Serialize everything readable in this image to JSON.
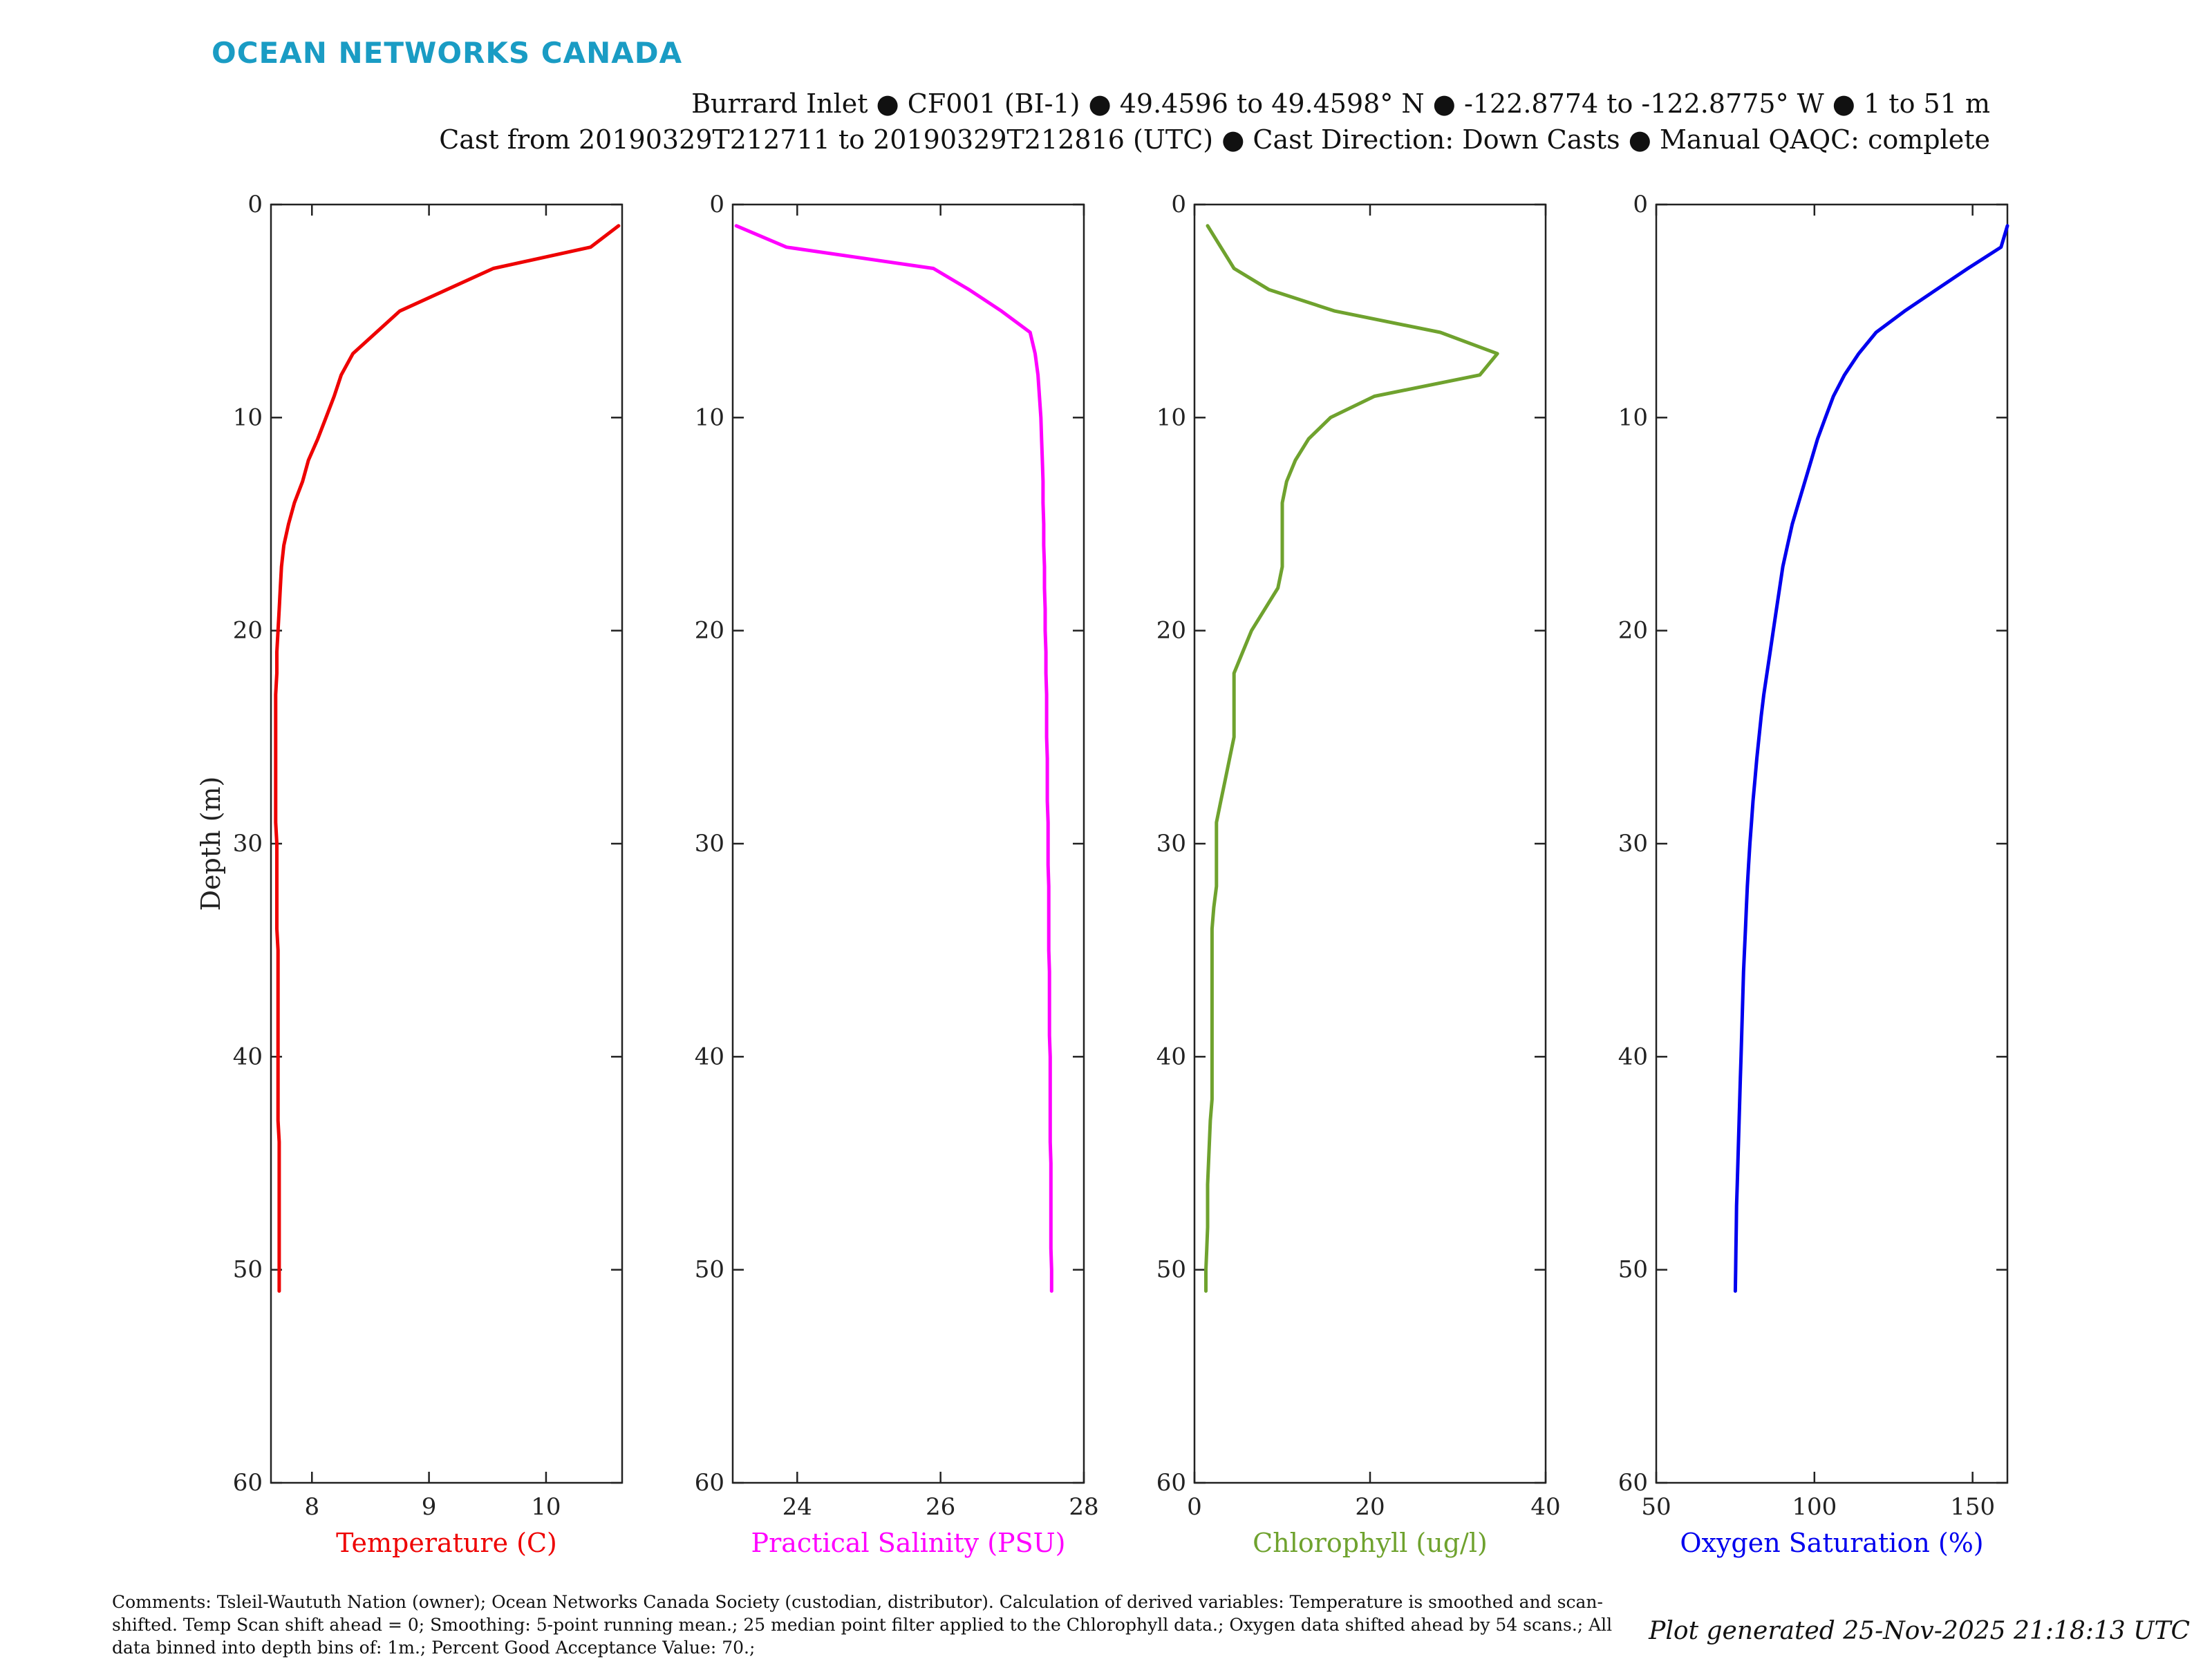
{
  "header": {
    "logo_text": "OCEAN NETWORKS CANADA",
    "logo_color": "#1a9cc4",
    "line1": "Burrard Inlet ● CF001 (BI-1) ● 49.4596 to 49.4598° N ● -122.8774 to -122.8775° W ● 1 to 51 m",
    "line2": "Cast from 20190329T212711 to 20190329T212816 (UTC) ● Cast Direction: Down Casts ● Manual QAQC: complete"
  },
  "footer": {
    "comments": "Comments: Tsleil-Waututh Nation (owner); Ocean Networks Canada Society (custodian, distributor). Calculation of derived variables: Temperature is smoothed and scan-shifted. Temp Scan shift ahead = 0; Smoothing: 5-point running mean.; 25 median point filter applied to the Chlorophyll data.; Oxygen data shifted ahead by 54 scans.; All data binned into depth bins of: 1m.; Percent Good Acceptance Value: 70.;",
    "generated": "Plot generated 25-Nov-2025 21:18:13 UTC"
  },
  "chart_data": [
    {
      "type": "line",
      "xlabel": "Temperature (C)",
      "ylabel": "Depth (m)",
      "color": "#ee0000",
      "xlim": [
        7.65,
        10.65
      ],
      "ylim": [
        0,
        60
      ],
      "y_reversed": true,
      "xticks": [
        8,
        9,
        10
      ],
      "yticks": [
        0,
        10,
        20,
        30,
        40,
        50,
        60
      ],
      "series": [
        {
          "x": [
            10.62,
            10.38,
            9.55,
            9.15,
            8.75,
            8.55,
            8.35,
            8.25,
            8.19,
            8.12,
            8.05,
            7.97,
            7.92,
            7.85,
            7.8,
            7.76,
            7.74,
            7.73,
            7.72,
            7.71,
            7.7,
            7.7,
            7.69,
            7.69,
            7.69,
            7.69,
            7.69,
            7.69,
            7.69,
            7.7,
            7.7,
            7.7,
            7.7,
            7.7,
            7.71,
            7.71,
            7.71,
            7.71,
            7.71,
            7.71,
            7.71,
            7.71,
            7.71,
            7.72,
            7.72,
            7.72,
            7.72,
            7.72,
            7.72,
            7.72,
            7.72
          ],
          "y": [
            1,
            2,
            3,
            4,
            5,
            6,
            7,
            8,
            9,
            10,
            11,
            12,
            13,
            14,
            15,
            16,
            17,
            18,
            19,
            20,
            21,
            22,
            23,
            24,
            25,
            26,
            27,
            28,
            29,
            30,
            31,
            32,
            33,
            34,
            35,
            36,
            37,
            38,
            39,
            40,
            41,
            42,
            43,
            44,
            45,
            46,
            47,
            48,
            49,
            50,
            51
          ]
        }
      ]
    },
    {
      "type": "line",
      "xlabel": "Practical Salinity (PSU)",
      "color": "#ff00ff",
      "xlim": [
        23.1,
        28.0
      ],
      "ylim": [
        0,
        60
      ],
      "y_reversed": true,
      "xticks": [
        24,
        26,
        28
      ],
      "yticks": [
        0,
        10,
        20,
        30,
        40,
        50,
        60
      ],
      "series": [
        {
          "x": [
            23.15,
            23.85,
            25.9,
            26.4,
            26.85,
            27.25,
            27.32,
            27.36,
            27.38,
            27.4,
            27.41,
            27.42,
            27.43,
            27.43,
            27.44,
            27.44,
            27.45,
            27.45,
            27.46,
            27.46,
            27.47,
            27.47,
            27.48,
            27.48,
            27.48,
            27.49,
            27.49,
            27.49,
            27.5,
            27.5,
            27.5,
            27.51,
            27.51,
            27.51,
            27.51,
            27.52,
            27.52,
            27.52,
            27.52,
            27.53,
            27.53,
            27.53,
            27.53,
            27.53,
            27.54,
            27.54,
            27.54,
            27.54,
            27.54,
            27.55,
            27.55
          ],
          "y": [
            1,
            2,
            3,
            4,
            5,
            6,
            7,
            8,
            9,
            10,
            11,
            12,
            13,
            14,
            15,
            16,
            17,
            18,
            19,
            20,
            21,
            22,
            23,
            24,
            25,
            26,
            27,
            28,
            29,
            30,
            31,
            32,
            33,
            34,
            35,
            36,
            37,
            38,
            39,
            40,
            41,
            42,
            43,
            44,
            45,
            46,
            47,
            48,
            49,
            50,
            51
          ]
        }
      ]
    },
    {
      "type": "line",
      "xlabel": "Chlorophyll (ug/l)",
      "color": "#6fa22e",
      "xlim": [
        0,
        40
      ],
      "ylim": [
        0,
        60
      ],
      "y_reversed": true,
      "xticks": [
        0,
        20,
        40
      ],
      "yticks": [
        0,
        10,
        20,
        30,
        40,
        50,
        60
      ],
      "series": [
        {
          "x": [
            1.5,
            3.0,
            4.5,
            8.5,
            16.0,
            28.0,
            34.5,
            32.5,
            20.5,
            15.5,
            13.0,
            11.5,
            10.5,
            10.0,
            10.0,
            10.0,
            10.0,
            9.5,
            8.0,
            6.5,
            5.5,
            4.5,
            4.5,
            4.5,
            4.5,
            4.0,
            3.5,
            3.0,
            2.5,
            2.5,
            2.5,
            2.5,
            2.2,
            2.0,
            2.0,
            2.0,
            2.0,
            2.0,
            2.0,
            2.0,
            2.0,
            2.0,
            1.8,
            1.7,
            1.6,
            1.5,
            1.5,
            1.5,
            1.4,
            1.3,
            1.3
          ],
          "y": [
            1,
            2,
            3,
            4,
            5,
            6,
            7,
            8,
            9,
            10,
            11,
            12,
            13,
            14,
            15,
            16,
            17,
            18,
            19,
            20,
            21,
            22,
            23,
            24,
            25,
            26,
            27,
            28,
            29,
            30,
            31,
            32,
            33,
            34,
            35,
            36,
            37,
            38,
            39,
            40,
            41,
            42,
            43,
            44,
            45,
            46,
            47,
            48,
            49,
            50,
            51
          ]
        }
      ]
    },
    {
      "type": "line",
      "xlabel": "Oxygen Saturation (%)",
      "color": "#0000ee",
      "xlim": [
        50,
        161
      ],
      "ylim": [
        0,
        60
      ],
      "y_reversed": true,
      "xticks": [
        50,
        100,
        150
      ],
      "yticks": [
        0,
        10,
        20,
        30,
        40,
        50,
        60
      ],
      "series": [
        {
          "x": [
            161.0,
            159.0,
            148.5,
            138.5,
            128.5,
            119.5,
            114.0,
            109.5,
            106.0,
            103.5,
            101.0,
            99.0,
            97.0,
            95.0,
            93.0,
            91.5,
            90.0,
            89.0,
            88.0,
            87.0,
            86.0,
            85.0,
            84.0,
            83.2,
            82.5,
            81.8,
            81.2,
            80.6,
            80.1,
            79.6,
            79.2,
            78.8,
            78.5,
            78.2,
            77.9,
            77.6,
            77.4,
            77.2,
            77.0,
            76.8,
            76.6,
            76.4,
            76.2,
            76.0,
            75.8,
            75.6,
            75.4,
            75.3,
            75.2,
            75.1,
            75.0
          ],
          "y": [
            1,
            2,
            3,
            4,
            5,
            6,
            7,
            8,
            9,
            10,
            11,
            12,
            13,
            14,
            15,
            16,
            17,
            18,
            19,
            20,
            21,
            22,
            23,
            24,
            25,
            26,
            27,
            28,
            29,
            30,
            31,
            32,
            33,
            34,
            35,
            36,
            37,
            38,
            39,
            40,
            41,
            42,
            43,
            44,
            45,
            46,
            47,
            48,
            49,
            50,
            51
          ]
        }
      ]
    }
  ]
}
